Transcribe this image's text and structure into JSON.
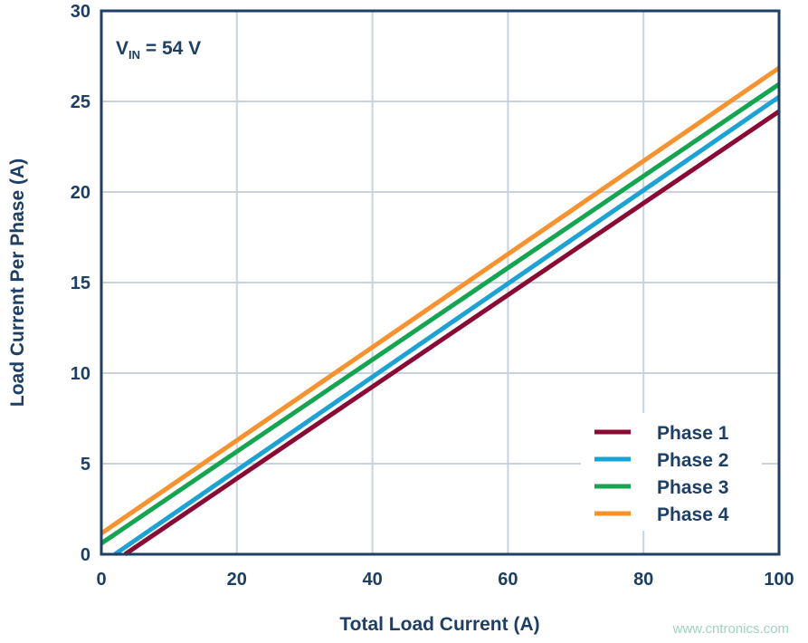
{
  "chart_data": {
    "type": "line",
    "xlabel": "Total Load Current (A)",
    "ylabel": "Load Current Per Phase (A)",
    "annotation": {
      "main": "V",
      "sub": "IN",
      "rest": " = 54 V"
    },
    "xlim": [
      0,
      100
    ],
    "ylim": [
      0,
      30
    ],
    "xticks": [
      0,
      20,
      40,
      60,
      80,
      100
    ],
    "yticks": [
      0,
      5,
      10,
      15,
      20,
      25,
      30
    ],
    "grid": true,
    "legend_position": "bottom-right",
    "series": [
      {
        "name": "Phase 1",
        "color": "#8b0a34",
        "points": [
          [
            3.5,
            0
          ],
          [
            100,
            24.45
          ]
        ]
      },
      {
        "name": "Phase 2",
        "color": "#1aa3d4",
        "points": [
          [
            2,
            0
          ],
          [
            100,
            25.25
          ]
        ]
      },
      {
        "name": "Phase 3",
        "color": "#13a550",
        "points": [
          [
            0,
            0.6
          ],
          [
            100,
            25.95
          ]
        ]
      },
      {
        "name": "Phase 4",
        "color": "#f7922d",
        "points": [
          [
            0,
            1.15
          ],
          [
            100,
            26.85
          ]
        ]
      }
    ]
  },
  "watermark": "www.cntronics.com"
}
